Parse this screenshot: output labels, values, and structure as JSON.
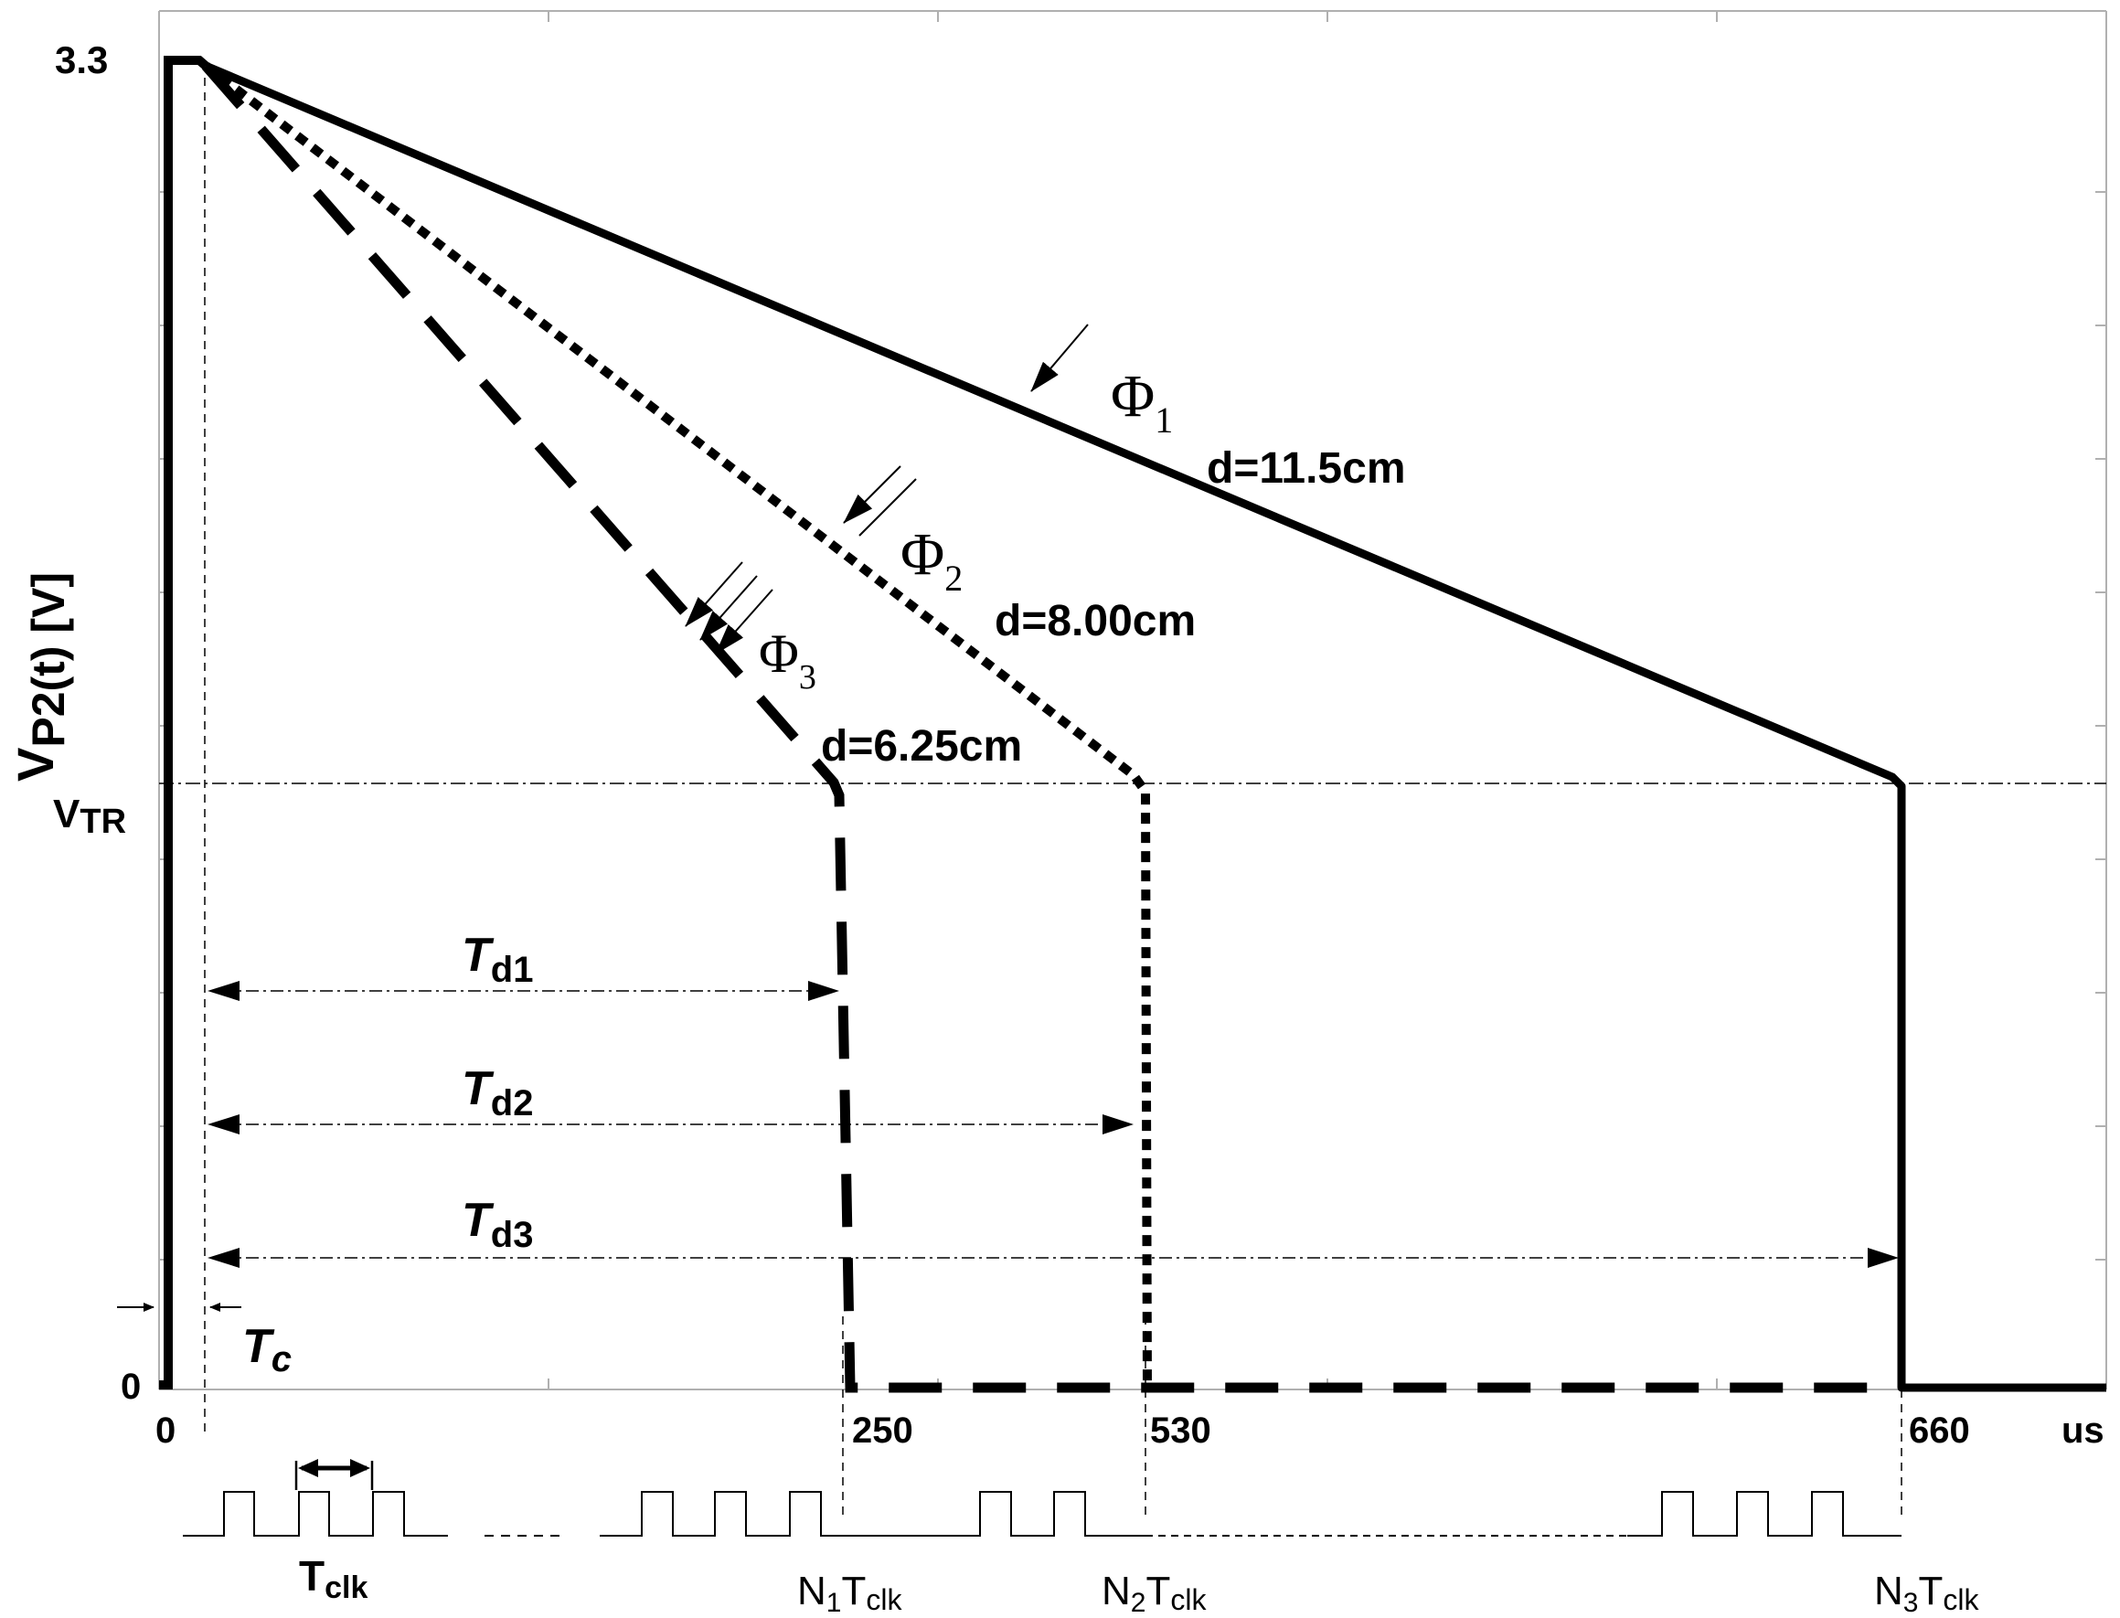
{
  "axes": {
    "y_label_main": "V",
    "y_label_sub": "P2(t) [V]",
    "y_top": "3.3",
    "y_zero": "0",
    "vtr_main": "V",
    "vtr_sub": "TR",
    "x_zero": "0",
    "x_250": "250",
    "x_530": "530",
    "x_660": "660",
    "x_unit": "us"
  },
  "curves": [
    {
      "phi": "Φ",
      "phi_sub": "1",
      "distance": "d=11.5cm",
      "style": "solid"
    },
    {
      "phi": "Φ",
      "phi_sub": "2",
      "distance": "d=8.00cm",
      "style": "dotted"
    },
    {
      "phi": "Φ",
      "phi_sub": "3",
      "distance": "d=6.25cm",
      "style": "dashed"
    }
  ],
  "delays": [
    {
      "main": "T",
      "sub": "d1"
    },
    {
      "main": "T",
      "sub": "d2"
    },
    {
      "main": "T",
      "sub": "d3"
    }
  ],
  "tc": {
    "main": "T",
    "sub": "c"
  },
  "clock": {
    "tclk_main": "T",
    "tclk_sub": "clk",
    "n1": "N",
    "n1_sub": "1",
    "n1_tail": "T",
    "n1_tail_sub": "clk",
    "n2": "N",
    "n2_sub": "2",
    "n2_tail": "T",
    "n2_tail_sub": "clk",
    "n3": "N",
    "n3_sub": "3",
    "n3_tail": "T",
    "n3_tail_sub": "clk"
  },
  "colors": {
    "ink": "#000000",
    "grid": "#b0b0b0",
    "background": "#ffffff"
  }
}
